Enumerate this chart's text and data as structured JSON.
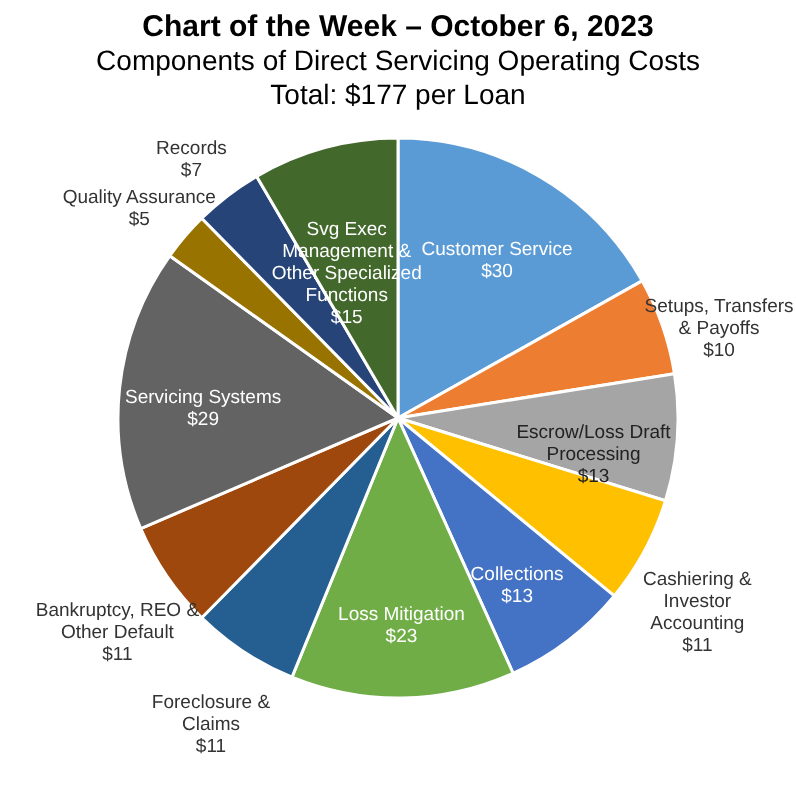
{
  "chart_data": {
    "type": "pie",
    "title": "Chart of the Week – October 6, 2023",
    "subtitle": "Components of Direct Servicing Operating Costs",
    "annotations": [
      "Total: $177 per Loan"
    ],
    "categories": [
      "Customer Service",
      "Setups, Transfers & Payoffs",
      "Escrow/Loss Draft Processing",
      "Cashiering & Investor Accounting",
      "Collections",
      "Loss Mitigation",
      "Foreclosure & Claims",
      "Bankruptcy, REO & Other Default",
      "Servicing Systems",
      "Quality Assurance",
      "Records",
      "Svg Exec Management & Other Specialized Functions"
    ],
    "values": [
      30,
      10,
      13,
      11,
      13,
      23,
      11,
      11,
      29,
      5,
      7,
      15
    ],
    "colors": [
      "#5b9bd5",
      "#ed7d31",
      "#a5a5a5",
      "#ffc000",
      "#4472c4",
      "#70ad47",
      "#255e91",
      "#9e480e",
      "#636363",
      "#997300",
      "#264478",
      "#43682b"
    ],
    "value_labels": [
      "$30",
      "$10",
      "$13",
      "$11",
      "$13",
      "$23",
      "$11",
      "$11",
      "$29",
      "$5",
      "$7",
      "$15"
    ]
  }
}
